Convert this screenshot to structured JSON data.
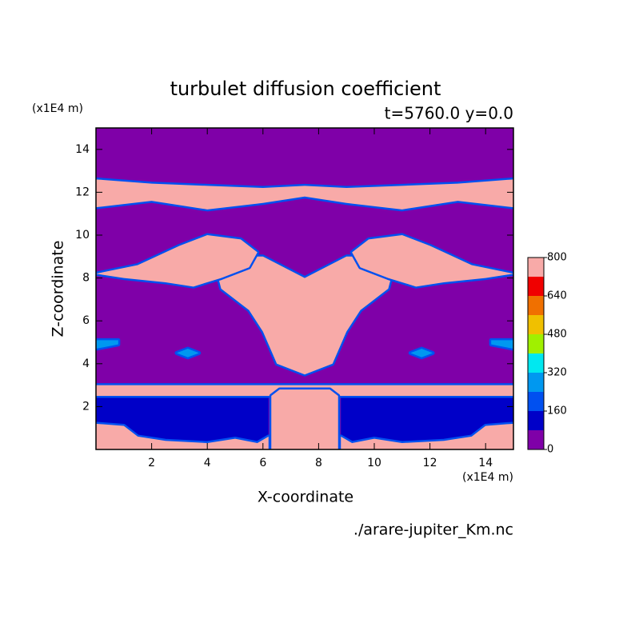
{
  "chart_data": {
    "type": "contour",
    "title": "turbulet diffusion coefficient",
    "subtitle": "t=5760.0 y=0.0",
    "x_label": "X-coordinate",
    "y_label": "Z-coordinate",
    "x_unit": "(x1E4 m)",
    "y_unit": "(x1E4 m)",
    "source": "./arare-jupiter_Km.nc",
    "xlim": [
      0,
      15
    ],
    "ylim": [
      0,
      15
    ],
    "xticks": [
      2,
      4,
      6,
      8,
      10,
      12,
      14
    ],
    "yticks": [
      2,
      4,
      6,
      8,
      10,
      12,
      14
    ],
    "levels": [
      0,
      80,
      160,
      240,
      320,
      400,
      480,
      560,
      640,
      720,
      800
    ],
    "level_ticks": [
      0,
      160,
      320,
      480,
      640,
      800
    ],
    "colors": [
      "#7f00a8",
      "#0000c8",
      "#0050f0",
      "#0098f0",
      "#00e8f0",
      "#a0f000",
      "#f0c000",
      "#f07000",
      "#f00000",
      "#f8aaa8"
    ],
    "regions": [
      {
        "value": 0,
        "x": [
          0,
          15,
          15,
          0
        ],
        "z": [
          0,
          0,
          15,
          15
        ]
      },
      {
        "value": 80,
        "x": [
          0,
          6.2,
          6.2,
          0
        ],
        "z": [
          0,
          0,
          2.5,
          2.5
        ]
      },
      {
        "value": 80,
        "x": [
          8.8,
          15,
          15,
          8.8
        ],
        "z": [
          0,
          0,
          2.5,
          2.5
        ]
      },
      {
        "value": 720,
        "x": [
          0,
          15,
          15,
          0
        ],
        "z": [
          2.5,
          2.5,
          3.0,
          3.0
        ]
      },
      {
        "value": 720,
        "x": [
          6.3,
          6.3,
          6.6,
          8.4,
          8.7,
          8.7
        ],
        "z": [
          0,
          2.5,
          2.8,
          2.8,
          2.5,
          0
        ]
      },
      {
        "value": 720,
        "x": [
          0,
          0,
          1,
          1.5,
          2.5,
          4,
          5,
          5.8,
          6.2,
          6.2
        ],
        "z": [
          0,
          1.2,
          1.1,
          0.6,
          0.4,
          0.3,
          0.5,
          0.3,
          0.6,
          0
        ]
      },
      {
        "value": 720,
        "x": [
          15,
          15,
          14,
          13.5,
          12.5,
          11,
          10,
          9.2,
          8.8,
          8.8
        ],
        "z": [
          0,
          1.2,
          1.1,
          0.6,
          0.4,
          0.3,
          0.5,
          0.3,
          0.6,
          0
        ]
      },
      {
        "value": 720,
        "x": [
          7.5,
          6.5,
          6,
          5.5,
          5,
          4.5,
          4.3,
          5,
          6,
          7.5,
          9,
          10,
          10.7,
          10.5,
          10,
          9.5,
          9,
          8.5
        ],
        "z": [
          3.5,
          4,
          5.5,
          6.5,
          7,
          7.5,
          8.5,
          9,
          9,
          8,
          9,
          9,
          8.5,
          7.5,
          7,
          6.5,
          5.5,
          4
        ]
      },
      {
        "value": 720,
        "x": [
          0,
          1.5,
          3,
          4,
          5.2,
          5.8,
          5.5,
          4.5,
          3.5,
          2.5,
          1,
          0
        ],
        "z": [
          8.2,
          8.6,
          9.5,
          10,
          9.8,
          9.2,
          8.5,
          8,
          7.6,
          7.8,
          8,
          8.2
        ]
      },
      {
        "value": 720,
        "x": [
          15,
          13.5,
          12,
          11,
          9.8,
          9.2,
          9.5,
          10.5,
          11.5,
          12.5,
          14,
          15
        ],
        "z": [
          8.2,
          8.6,
          9.5,
          10,
          9.8,
          9.2,
          8.5,
          8,
          7.6,
          7.8,
          8,
          8.2
        ]
      },
      {
        "value": 720,
        "x": [
          0,
          2,
          4,
          6,
          7.5,
          9,
          11,
          13,
          15,
          15,
          13,
          11,
          9,
          7.5,
          6,
          4,
          2,
          0
        ],
        "z": [
          12.6,
          12.4,
          12.3,
          12.2,
          12.3,
          12.2,
          12.3,
          12.4,
          12.6,
          11.3,
          11.6,
          11.2,
          11.5,
          11.8,
          11.5,
          11.2,
          11.6,
          11.3
        ]
      },
      {
        "value": 240,
        "x": [
          2.9,
          3.3,
          3.7,
          3.3
        ],
        "z": [
          4.5,
          4.7,
          4.5,
          4.3
        ]
      },
      {
        "value": 240,
        "x": [
          11.3,
          11.7,
          12.1,
          11.7
        ],
        "z": [
          4.5,
          4.7,
          4.5,
          4.3
        ]
      },
      {
        "value": 240,
        "x": [
          0,
          0.8,
          0.8,
          0
        ],
        "z": [
          4.7,
          4.9,
          5.1,
          5.1
        ]
      },
      {
        "value": 240,
        "x": [
          15,
          14.2,
          14.2,
          15
        ],
        "z": [
          4.7,
          4.9,
          5.1,
          5.1
        ]
      }
    ]
  }
}
